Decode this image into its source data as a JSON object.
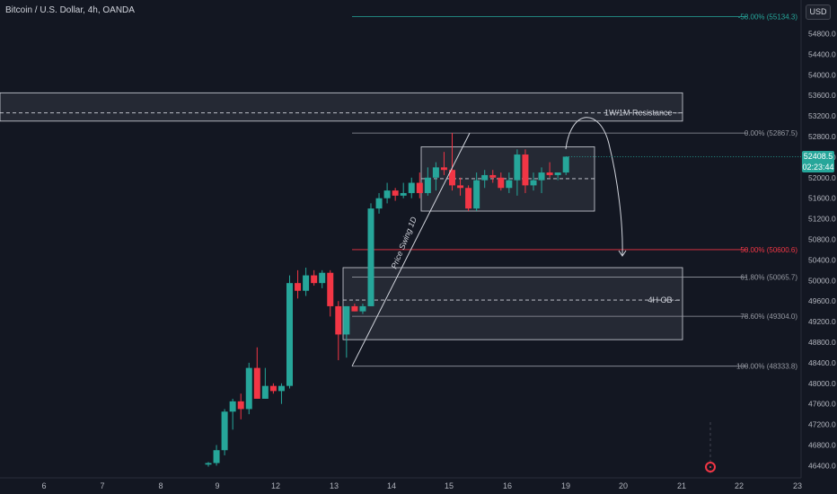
{
  "header": {
    "title": "Bitcoin / U.S. Dollar, 4h, OANDA",
    "currency_button": "USD"
  },
  "last_price": {
    "value": "52408.5",
    "countdown": "02:23:44"
  },
  "colors": {
    "up": "#26a69a",
    "down": "#f23645",
    "background": "#131722"
  },
  "chart_data": {
    "type": "candlestick",
    "x_tick_labels": [
      "6",
      "7",
      "8",
      "9",
      "12",
      "13",
      "14",
      "15",
      "16",
      "19",
      "20",
      "21",
      "22",
      "23"
    ],
    "y_tick_labels": [
      "54800.0",
      "54400.0",
      "54000.0",
      "53600.0",
      "53200.0",
      "52800.0",
      "52400.0",
      "52000.0",
      "51600.0",
      "51200.0",
      "50800.0",
      "50400.0",
      "50000.0",
      "49600.0",
      "49200.0",
      "48800.0",
      "48400.0",
      "48000.0",
      "47600.0",
      "47200.0",
      "46800.0",
      "46400.0"
    ],
    "ylim": [
      46200,
      55300
    ],
    "candles": [
      {
        "o": 46420,
        "h": 46470,
        "l": 46380,
        "c": 46450
      },
      {
        "o": 46450,
        "h": 46800,
        "l": 46400,
        "c": 46700
      },
      {
        "o": 46700,
        "h": 47500,
        "l": 46600,
        "c": 47450
      },
      {
        "o": 47450,
        "h": 47700,
        "l": 47100,
        "c": 47650
      },
      {
        "o": 47650,
        "h": 47800,
        "l": 47300,
        "c": 47500
      },
      {
        "o": 47500,
        "h": 48400,
        "l": 47400,
        "c": 48300
      },
      {
        "o": 48300,
        "h": 48700,
        "l": 47700,
        "c": 47700
      },
      {
        "o": 47700,
        "h": 48300,
        "l": 47700,
        "c": 47950
      },
      {
        "o": 47950,
        "h": 48000,
        "l": 47800,
        "c": 47850
      },
      {
        "o": 47850,
        "h": 48000,
        "l": 47600,
        "c": 47950
      },
      {
        "o": 47950,
        "h": 50100,
        "l": 47900,
        "c": 49950
      },
      {
        "o": 49950,
        "h": 50200,
        "l": 49650,
        "c": 49800
      },
      {
        "o": 49800,
        "h": 50250,
        "l": 49700,
        "c": 50100
      },
      {
        "o": 50100,
        "h": 50200,
        "l": 49900,
        "c": 49950
      },
      {
        "o": 49950,
        "h": 50200,
        "l": 49850,
        "c": 50150
      },
      {
        "o": 50150,
        "h": 50200,
        "l": 49300,
        "c": 49500
      },
      {
        "o": 49500,
        "h": 49600,
        "l": 48450,
        "c": 48950
      },
      {
        "o": 48950,
        "h": 49500,
        "l": 48500,
        "c": 49500
      },
      {
        "o": 49500,
        "h": 49550,
        "l": 49400,
        "c": 49400
      },
      {
        "o": 49400,
        "h": 49550,
        "l": 49350,
        "c": 49500
      },
      {
        "o": 49500,
        "h": 51500,
        "l": 49500,
        "c": 51400
      },
      {
        "o": 51400,
        "h": 51700,
        "l": 51300,
        "c": 51600
      },
      {
        "o": 51600,
        "h": 51900,
        "l": 51500,
        "c": 51750
      },
      {
        "o": 51750,
        "h": 51800,
        "l": 51550,
        "c": 51650
      },
      {
        "o": 51650,
        "h": 51900,
        "l": 51600,
        "c": 51700
      },
      {
        "o": 51700,
        "h": 52000,
        "l": 51600,
        "c": 51900
      },
      {
        "o": 51900,
        "h": 52100,
        "l": 51600,
        "c": 51700
      },
      {
        "o": 51700,
        "h": 52200,
        "l": 51650,
        "c": 52000
      },
      {
        "o": 52000,
        "h": 52300,
        "l": 51750,
        "c": 52200
      },
      {
        "o": 52200,
        "h": 52500,
        "l": 52050,
        "c": 52150
      },
      {
        "o": 52150,
        "h": 52870,
        "l": 51750,
        "c": 51850
      },
      {
        "o": 51850,
        "h": 52000,
        "l": 51650,
        "c": 51800
      },
      {
        "o": 51800,
        "h": 51850,
        "l": 51350,
        "c": 51400
      },
      {
        "o": 51400,
        "h": 52100,
        "l": 51350,
        "c": 51950
      },
      {
        "o": 51950,
        "h": 52150,
        "l": 51800,
        "c": 52050
      },
      {
        "o": 52050,
        "h": 52150,
        "l": 51900,
        "c": 52000
      },
      {
        "o": 52000,
        "h": 52100,
        "l": 51750,
        "c": 51800
      },
      {
        "o": 51800,
        "h": 52100,
        "l": 51700,
        "c": 51950
      },
      {
        "o": 51950,
        "h": 52550,
        "l": 51650,
        "c": 52450
      },
      {
        "o": 52450,
        "h": 52550,
        "l": 51700,
        "c": 51850
      },
      {
        "o": 51850,
        "h": 52100,
        "l": 51750,
        "c": 51950
      },
      {
        "o": 51950,
        "h": 52200,
        "l": 51700,
        "c": 52100
      },
      {
        "o": 52100,
        "h": 52300,
        "l": 52000,
        "c": 52050
      },
      {
        "o": 52050,
        "h": 52100,
        "l": 51950,
        "c": 52100
      },
      {
        "o": 52100,
        "h": 52400,
        "l": 52050,
        "c": 52408.5
      }
    ],
    "fibonacci": [
      {
        "label": "-58.00% (55134.3)",
        "value": 55134.3
      },
      {
        "label": "0.00% (52867.5)",
        "value": 52867.5
      },
      {
        "label": "50.00% (50600.6)",
        "value": 50600.6
      },
      {
        "label": "61.80% (50065.7)",
        "value": 50065.7
      },
      {
        "label": "78.60% (49304.0)",
        "value": 49304.0
      },
      {
        "label": "100.00% (48333.8)",
        "value": 48333.8
      }
    ],
    "zones": [
      {
        "label": "1W/1M Resistance",
        "top": 53650,
        "bottom": 53100,
        "mid": 53260
      },
      {
        "label": "4H OB",
        "top": 50250,
        "bottom": 48850,
        "mid": 49620
      },
      {
        "label": "",
        "top": 52600,
        "bottom": 51350,
        "mid": 51980
      }
    ],
    "annotations": [
      {
        "text": "Price Swing 1D"
      }
    ]
  }
}
